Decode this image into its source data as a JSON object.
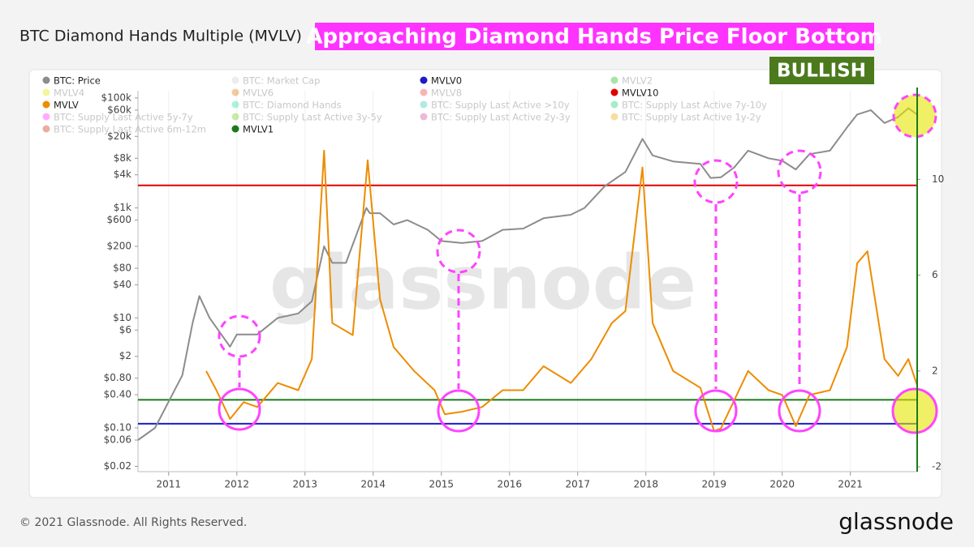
{
  "chart_data": {
    "type": "line",
    "title": "BTC Diamond Hands Multiple (MVLV)",
    "annotations": [
      "Approaching Diamond Hands Price Floor Bottom",
      "BULLISH"
    ],
    "watermark": "glassnode",
    "log_scale_y": true,
    "xlim": [
      2010.55,
      2021.98
    ],
    "xticks": [
      2011,
      2012,
      2013,
      2014,
      2015,
      2016,
      2017,
      2018,
      2019,
      2020,
      2021
    ],
    "ylim": [
      0.016,
      135000
    ],
    "yticks": [
      {
        "value": 100000,
        "label": "$100k"
      },
      {
        "value": 60000,
        "label": "$60k"
      },
      {
        "value": 20000,
        "label": "$20k"
      },
      {
        "value": 8000,
        "label": "$8k"
      },
      {
        "value": 4000,
        "label": "$4k"
      },
      {
        "value": 1000,
        "label": "$1k"
      },
      {
        "value": 600,
        "label": "$600"
      },
      {
        "value": 200,
        "label": "$200"
      },
      {
        "value": 80,
        "label": "$80"
      },
      {
        "value": 40,
        "label": "$40"
      },
      {
        "value": 10,
        "label": "$10"
      },
      {
        "value": 6,
        "label": "$6"
      },
      {
        "value": 2,
        "label": "$2"
      },
      {
        "value": 0.8,
        "label": "$0.80"
      },
      {
        "value": 0.4,
        "label": "$0.40"
      },
      {
        "value": 0.1,
        "label": "$0.10"
      },
      {
        "value": 0.06,
        "label": "$0.06"
      },
      {
        "value": 0.02,
        "label": "$0.02"
      }
    ],
    "y2lim": [
      -2.2,
      13.7
    ],
    "y2ticks": [
      10,
      6,
      2,
      -2
    ],
    "grid": true,
    "series": [
      {
        "name": "BTC: Price",
        "color": "#8c8c8c",
        "visible": true,
        "axis": "y",
        "x": [
          2010.55,
          2010.8,
          2011.0,
          2011.2,
          2011.35,
          2011.45,
          2011.6,
          2011.9,
          2012.0,
          2012.3,
          2012.6,
          2012.9,
          2013.1,
          2013.28,
          2013.4,
          2013.6,
          2013.9,
          2013.95,
          2014.1,
          2014.3,
          2014.5,
          2014.8,
          2015.0,
          2015.3,
          2015.6,
          2015.9,
          2016.2,
          2016.5,
          2016.9,
          2017.1,
          2017.4,
          2017.7,
          2017.95,
          2018.1,
          2018.4,
          2018.8,
          2018.95,
          2019.1,
          2019.3,
          2019.5,
          2019.8,
          2020.0,
          2020.2,
          2020.4,
          2020.7,
          2020.95,
          2021.1,
          2021.3,
          2021.5,
          2021.7,
          2021.85,
          2021.98
        ],
        "values": [
          0.06,
          0.1,
          0.3,
          0.9,
          8,
          25,
          10,
          3,
          5,
          5,
          10,
          12,
          20,
          200,
          100,
          100,
          1000,
          800,
          800,
          500,
          600,
          400,
          250,
          230,
          250,
          400,
          420,
          650,
          750,
          1000,
          2500,
          4500,
          18000,
          9000,
          7000,
          6300,
          3500,
          3600,
          5500,
          11000,
          8000,
          7200,
          5000,
          9500,
          11000,
          29000,
          50000,
          60000,
          35000,
          45000,
          65000,
          50000
        ]
      },
      {
        "name": "BTC: Market Cap",
        "color": "#d0d0d0",
        "visible": false
      },
      {
        "name": "MVLV0",
        "color": "#1c1cc8",
        "visible": true,
        "axis": "y2",
        "level": -0.2
      },
      {
        "name": "MVLV2",
        "color": "#22bb22",
        "visible": false
      },
      {
        "name": "MVLV4",
        "color": "#e6e600",
        "visible": false
      },
      {
        "name": "MVLV6",
        "color": "#e07a10",
        "visible": false
      },
      {
        "name": "MVLV8",
        "color": "#ee4444",
        "visible": false
      },
      {
        "name": "MVLV10",
        "color": "#e00000",
        "visible": true,
        "axis": "y2",
        "level": 9.75
      },
      {
        "name": "MVLV",
        "color": "#ee8c00",
        "visible": true,
        "axis": "y2",
        "x": [
          2011.55,
          2011.7,
          2011.9,
          2012.1,
          2012.3,
          2012.6,
          2012.9,
          2013.1,
          2013.28,
          2013.4,
          2013.7,
          2013.92,
          2014.1,
          2014.3,
          2014.6,
          2014.9,
          2015.05,
          2015.3,
          2015.6,
          2015.9,
          2016.2,
          2016.5,
          2016.9,
          2017.2,
          2017.5,
          2017.7,
          2017.95,
          2018.1,
          2018.4,
          2018.8,
          2019.0,
          2019.1,
          2019.3,
          2019.5,
          2019.8,
          2020.0,
          2020.2,
          2020.4,
          2020.7,
          2020.95,
          2021.1,
          2021.25,
          2021.5,
          2021.7,
          2021.85,
          2021.98
        ],
        "values": [
          2,
          1.2,
          0,
          0.7,
          0.5,
          1.5,
          1.2,
          2.5,
          11.2,
          4,
          3.5,
          10.8,
          5,
          3,
          2,
          1.2,
          0.2,
          0.3,
          0.5,
          1.2,
          1.2,
          2.2,
          1.5,
          2.5,
          4,
          4.5,
          10.5,
          4,
          2,
          1.3,
          -0.5,
          -0.4,
          0.8,
          2,
          1.2,
          1,
          -0.3,
          1,
          1.2,
          3,
          6.5,
          7,
          2.5,
          1.8,
          2.5,
          1.4
        ]
      },
      {
        "name": "BTC: Diamond Hands",
        "color": "#33ddaa",
        "visible": false
      },
      {
        "name": "BTC: Supply Last Active >10y",
        "color": "#33ccbb",
        "visible": false
      },
      {
        "name": "BTC: Supply Last Active 7y-10y",
        "color": "#22cc77",
        "visible": false
      },
      {
        "name": "BTC: Supply Last Active 5y-7y",
        "color": "#ff33ff",
        "visible": false
      },
      {
        "name": "BTC: Supply Last Active 3y-5y",
        "color": "#77cc22",
        "visible": false
      },
      {
        "name": "BTC: Supply Last Active 2y-3y",
        "color": "#cc5599",
        "visible": false
      },
      {
        "name": "BTC: Supply Last Active 1y-2y",
        "color": "#eeaa11",
        "visible": false
      },
      {
        "name": "BTC: Supply Last Active 6m-12m",
        "color": "#cc3311",
        "visible": false
      },
      {
        "name": "MVLV1",
        "color": "#1a7a1a",
        "visible": true,
        "axis": "y2",
        "level": 0.8
      }
    ]
  },
  "footer": {
    "copyright": "© 2021 Glassnode. All Rights Reserved.",
    "logo": "glassnode"
  }
}
